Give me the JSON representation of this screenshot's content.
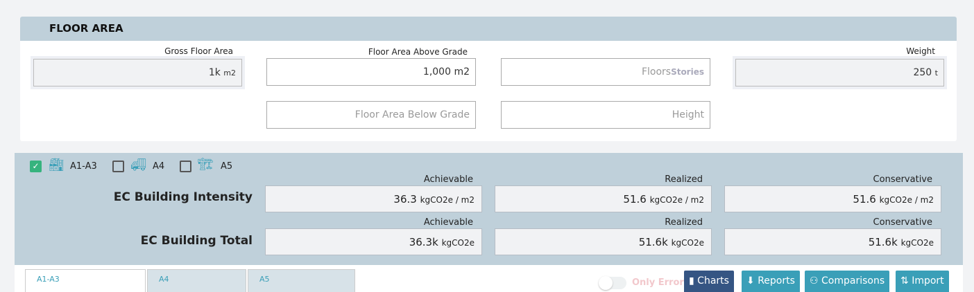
{
  "floor_area": {
    "title": "FLOOR AREA",
    "gross": {
      "label": "Gross Floor Area",
      "value": "1k",
      "unit": "m2"
    },
    "above": {
      "label": "Floor Area Above Grade",
      "value": "1,000 m2"
    },
    "below": {
      "placeholder": "Floor Area Below Grade"
    },
    "floors": {
      "placeholder": "Floors",
      "unit": "Stories"
    },
    "height": {
      "placeholder": "Height"
    },
    "weight": {
      "label": "Weight",
      "value": "250",
      "unit": "t"
    }
  },
  "stages": [
    {
      "label": "A1-A3",
      "checked": true,
      "icon": "factory-icon"
    },
    {
      "label": "A4",
      "checked": false,
      "icon": "truck-icon"
    },
    {
      "label": "A5",
      "checked": false,
      "icon": "crane-icon"
    }
  ],
  "ec": {
    "intensity": {
      "label": "EC Building Intensity",
      "cols": [
        {
          "label": "Achievable",
          "value": "36.3",
          "unit": "kgCO2e / m2"
        },
        {
          "label": "Realized",
          "value": "51.6",
          "unit": "kgCO2e / m2"
        },
        {
          "label": "Conservative",
          "value": "51.6",
          "unit": "kgCO2e / m2"
        }
      ]
    },
    "total": {
      "label": "EC Building Total",
      "cols": [
        {
          "label": "Achievable",
          "value": "36.3k",
          "unit": "kgCO2e"
        },
        {
          "label": "Realized",
          "value": "51.6k",
          "unit": "kgCO2e"
        },
        {
          "label": "Conservative",
          "value": "51.6k",
          "unit": "kgCO2e"
        }
      ]
    }
  },
  "tabs": [
    {
      "label": "A1-A3"
    },
    {
      "label": "A4"
    },
    {
      "label": "A5"
    }
  ],
  "toolbar": {
    "only_errors": "Only Errors",
    "only_errors_on": false,
    "charts": "Charts",
    "reports": "Reports",
    "comparisons": "Comparisons",
    "import": "Import"
  },
  "colors": {
    "header": "#bfd0da",
    "teal": "#3a9fb8",
    "navy": "#355583",
    "check": "#36b37e"
  }
}
